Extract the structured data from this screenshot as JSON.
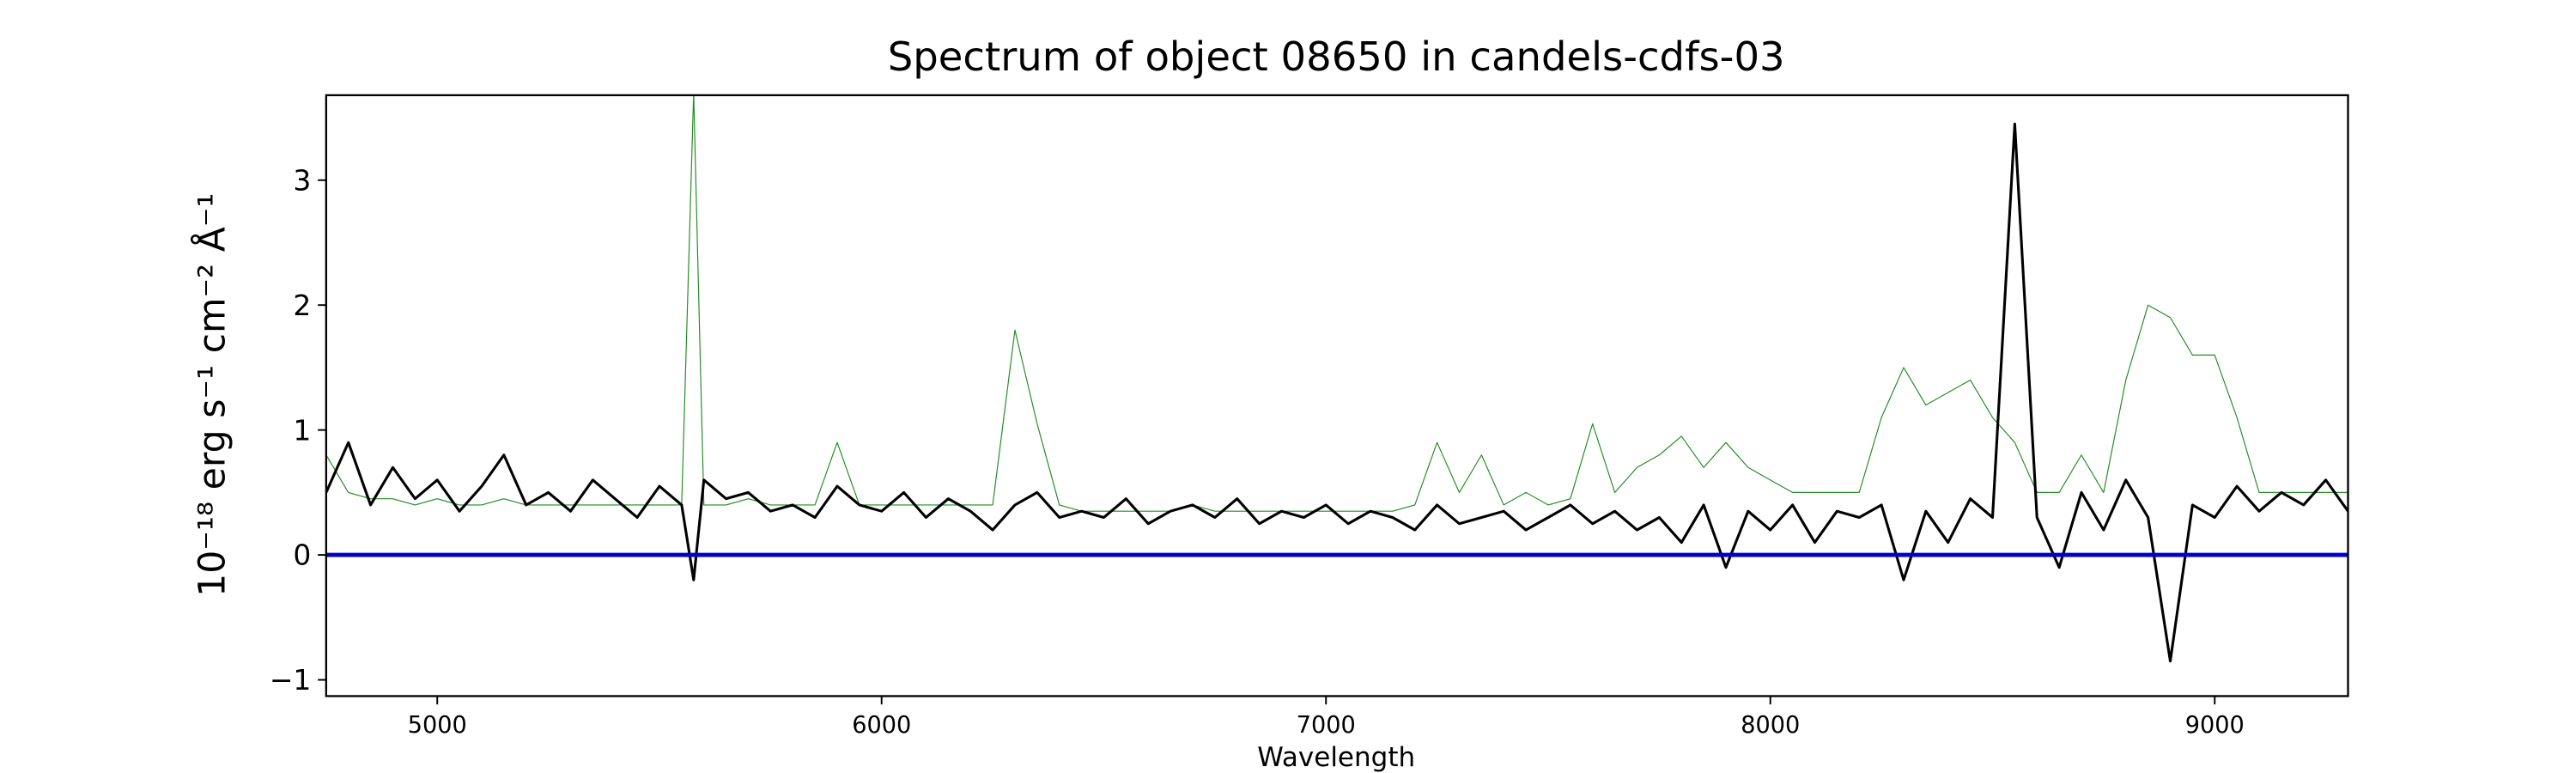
{
  "chart_data": {
    "type": "line",
    "title": "Spectrum of object 08650 in candels-cdfs-03",
    "x_label": "Wavelength",
    "y_label": "10⁻¹⁸ erg s⁻¹ cm⁻² Å⁻¹",
    "x": [
      4750,
      4800,
      4850,
      4900,
      4950,
      5000,
      5050,
      5100,
      5150,
      5200,
      5250,
      5300,
      5350,
      5400,
      5450,
      5500,
      5550,
      5577,
      5600,
      5650,
      5700,
      5750,
      5800,
      5850,
      5900,
      5950,
      6000,
      6050,
      6100,
      6150,
      6200,
      6250,
      6300,
      6350,
      6400,
      6450,
      6500,
      6550,
      6600,
      6650,
      6700,
      6750,
      6800,
      6850,
      6900,
      6950,
      7000,
      7050,
      7100,
      7150,
      7200,
      7250,
      7300,
      7350,
      7400,
      7450,
      7500,
      7550,
      7600,
      7650,
      7700,
      7750,
      7800,
      7850,
      7900,
      7950,
      8000,
      8050,
      8100,
      8150,
      8200,
      8250,
      8300,
      8350,
      8400,
      8450,
      8500,
      8550,
      8600,
      8650,
      8700,
      8750,
      8800,
      8850,
      8900,
      8950,
      9000,
      9050,
      9100,
      9150,
      9200,
      9250,
      9300
    ],
    "series": [
      {
        "color": "#228b22",
        "width": 0.6,
        "values": [
          0.8,
          0.5,
          0.45,
          0.45,
          0.4,
          0.45,
          0.4,
          0.4,
          0.45,
          0.4,
          0.4,
          0.4,
          0.4,
          0.4,
          0.4,
          0.4,
          0.4,
          3.7,
          0.4,
          0.4,
          0.45,
          0.4,
          0.4,
          0.4,
          0.9,
          0.4,
          0.4,
          0.4,
          0.4,
          0.4,
          0.4,
          0.4,
          1.8,
          1.05,
          0.4,
          0.35,
          0.35,
          0.35,
          0.35,
          0.35,
          0.4,
          0.35,
          0.35,
          0.35,
          0.35,
          0.35,
          0.35,
          0.35,
          0.35,
          0.35,
          0.4,
          0.9,
          0.5,
          0.8,
          0.4,
          0.5,
          0.4,
          0.45,
          1.05,
          0.5,
          0.7,
          0.8,
          0.95,
          0.7,
          0.9,
          0.7,
          0.6,
          0.5,
          0.5,
          0.5,
          0.5,
          1.1,
          1.5,
          1.2,
          1.3,
          1.4,
          1.1,
          0.9,
          0.5,
          0.5,
          0.8,
          0.5,
          1.4,
          2.0,
          1.9,
          1.6,
          1.6,
          1.1,
          0.5,
          0.5,
          0.5,
          0.5,
          0.5
        ]
      },
      {
        "color": "#000000",
        "width": 1.6,
        "values": [
          0.5,
          0.9,
          0.4,
          0.7,
          0.45,
          0.6,
          0.35,
          0.55,
          0.8,
          0.4,
          0.5,
          0.35,
          0.6,
          0.45,
          0.3,
          0.55,
          0.4,
          -0.2,
          0.6,
          0.45,
          0.5,
          0.35,
          0.4,
          0.3,
          0.55,
          0.4,
          0.35,
          0.5,
          0.3,
          0.45,
          0.35,
          0.2,
          0.4,
          0.5,
          0.3,
          0.35,
          0.3,
          0.45,
          0.25,
          0.35,
          0.4,
          0.3,
          0.45,
          0.25,
          0.35,
          0.3,
          0.4,
          0.25,
          0.35,
          0.3,
          0.2,
          0.4,
          0.25,
          0.3,
          0.35,
          0.2,
          0.3,
          0.4,
          0.25,
          0.35,
          0.2,
          0.3,
          0.1,
          0.4,
          -0.1,
          0.35,
          0.2,
          0.4,
          0.1,
          0.35,
          0.3,
          0.4,
          -0.2,
          0.35,
          0.1,
          0.45,
          0.3,
          3.45,
          0.3,
          -0.1,
          0.5,
          0.2,
          0.6,
          0.3,
          -0.85,
          0.4,
          0.3,
          0.55,
          0.35,
          0.5,
          0.4,
          0.6,
          0.35
        ]
      },
      {
        "color": "#0000cd",
        "width": 2.5,
        "x": [
          4750,
          9300
        ],
        "values": [
          0,
          0
        ]
      }
    ],
    "xlim": [
      4750,
      9300
    ],
    "ylim": [
      -1.13,
      3.68
    ],
    "xticks": [
      5000,
      6000,
      7000,
      8000,
      9000
    ],
    "yticks": [
      {
        "value": -1,
        "label": "−1"
      },
      0,
      1,
      2,
      3
    ]
  }
}
